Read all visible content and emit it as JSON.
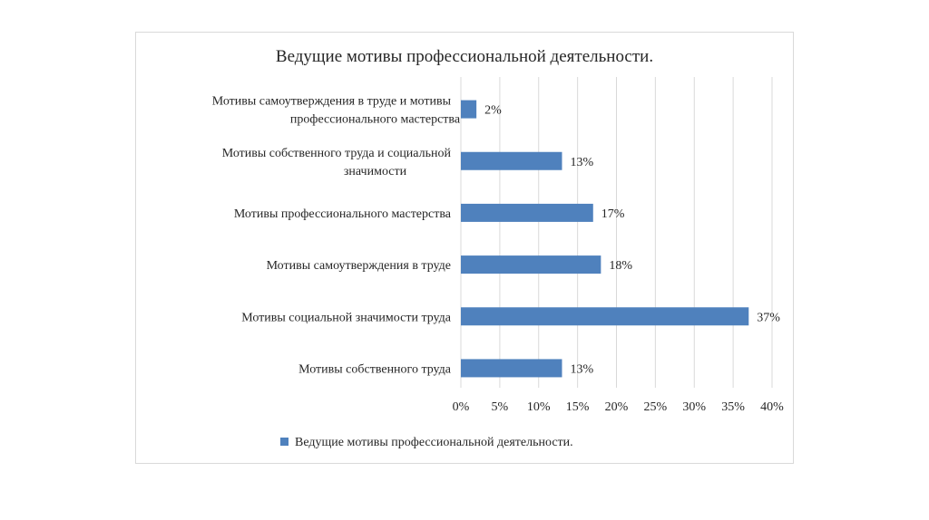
{
  "chart_data": {
    "type": "bar",
    "orientation": "horizontal",
    "title": "Ведущие мотивы профессиональной деятельности.",
    "categories": [
      [
        "Мотивы самоутверждения в труде и мотивы",
        "профессионального мастерства"
      ],
      [
        "Мотивы собственного труда и социальной",
        "значимости"
      ],
      [
        "Мотивы профессионального мастерства"
      ],
      [
        "Мотивы самоутверждения в труде"
      ],
      [
        "Мотивы социальной значимости труда"
      ],
      [
        "Мотивы собственного труда"
      ]
    ],
    "series": [
      {
        "name": "Ведущие мотивы профессиональной деятельности.",
        "values": [
          2,
          13,
          17,
          18,
          37,
          13
        ],
        "color": "#4f81bd"
      }
    ],
    "data_labels": [
      "2%",
      "13%",
      "17%",
      "18%",
      "37%",
      "13%"
    ],
    "xlim": [
      0,
      40
    ],
    "xticks": [
      0,
      5,
      10,
      15,
      20,
      25,
      30,
      35,
      40
    ],
    "xtick_labels": [
      "0%",
      "5%",
      "10%",
      "15%",
      "20%",
      "25%",
      "30%",
      "35%",
      "40%"
    ],
    "grid": true,
    "legend": "bottom",
    "xlabel": "",
    "ylabel": ""
  }
}
